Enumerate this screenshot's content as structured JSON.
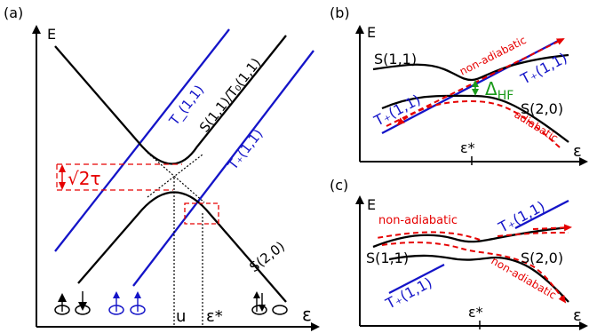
{
  "colors": {
    "black": "#000000",
    "blue": "#1414c8",
    "red": "#e60000",
    "green": "#1a9a1a"
  },
  "panel_a": {
    "tag": "(a)",
    "y_axis": "E",
    "x_axis": "ε",
    "x_ticks": [
      "u",
      "ε*"
    ],
    "curves": {
      "t_minus": "T_(1,1)",
      "s_t0": "S(1,1)/T₀(1,1)",
      "t_plus": "T₊(1,1)",
      "s20": "S(2,0)"
    },
    "gap_label": "√2τ"
  },
  "panel_b": {
    "tag": "(b)",
    "y_axis": "E",
    "x_axis": "ε",
    "x_tick": "ε*",
    "s11": "S(1,1)",
    "s20": "S(2,0)",
    "t_plus_right": "T₊(1,1)",
    "t_plus_left": "T₊(1,1)",
    "non_adiabatic": "non-adiabatic",
    "adiabatic": "adiabatic",
    "delta": "Δ",
    "delta_sub": "HF"
  },
  "panel_c": {
    "tag": "(c)",
    "y_axis": "E",
    "x_axis": "ε",
    "x_tick": "ε*",
    "s11": "S(1,1)",
    "s20": "S(2,0)",
    "t_plus_right": "T₊(1,1)",
    "t_plus_left": "T₊(1,1)",
    "non_adiabatic_top": "non-adiabatic",
    "non_adiabatic_bottom": "non-adiabatic"
  }
}
